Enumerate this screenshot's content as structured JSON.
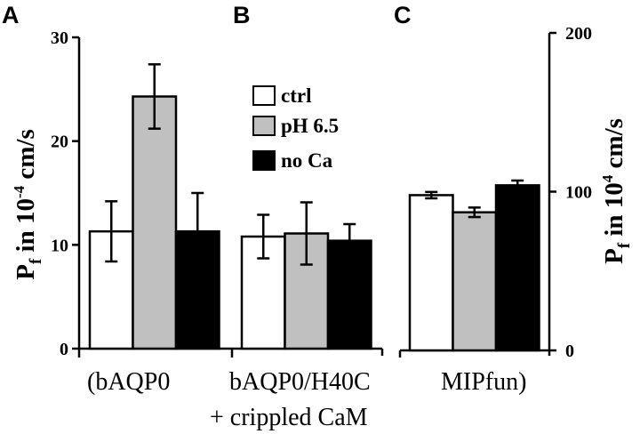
{
  "chart_data": {
    "type": "bar",
    "panels": [
      "A",
      "B",
      "C"
    ],
    "legend": [
      {
        "name": "ctrl",
        "color": "#ffffff"
      },
      {
        "name": "pH 6.5",
        "color": "#c0c0c0"
      },
      {
        "name": "no Ca",
        "color": "#000000"
      }
    ],
    "left_axis": {
      "label_main": "P",
      "label_sub": "f",
      "label_rest": " in 10",
      "label_sup": "-4",
      "label_end": " cm/s",
      "ylim": [
        0,
        30
      ],
      "ticks": [
        "0",
        "10",
        "20",
        "30"
      ]
    },
    "right_axis": {
      "label_main": "P",
      "label_sub": "f",
      "label_rest": " in 10",
      "label_sup": "4",
      "label_end": " cm/s",
      "ylim": [
        0,
        200
      ],
      "ticks": [
        "0",
        "100",
        "200"
      ]
    },
    "groups": [
      {
        "label": "(bAQP0",
        "axis": "left",
        "values": [
          11.3,
          24.3,
          11.3
        ],
        "errors": [
          2.9,
          3.1,
          3.7
        ]
      },
      {
        "label": "bAQP0/H40C",
        "label2": "+ crippled CaM",
        "axis": "left",
        "values": [
          10.8,
          11.1,
          10.4
        ],
        "errors": [
          2.1,
          3.0,
          1.6
        ]
      },
      {
        "label": "MIPfun)",
        "axis": "right",
        "values": [
          97.8,
          87,
          104
        ],
        "errors": [
          2,
          3,
          3
        ]
      }
    ]
  }
}
